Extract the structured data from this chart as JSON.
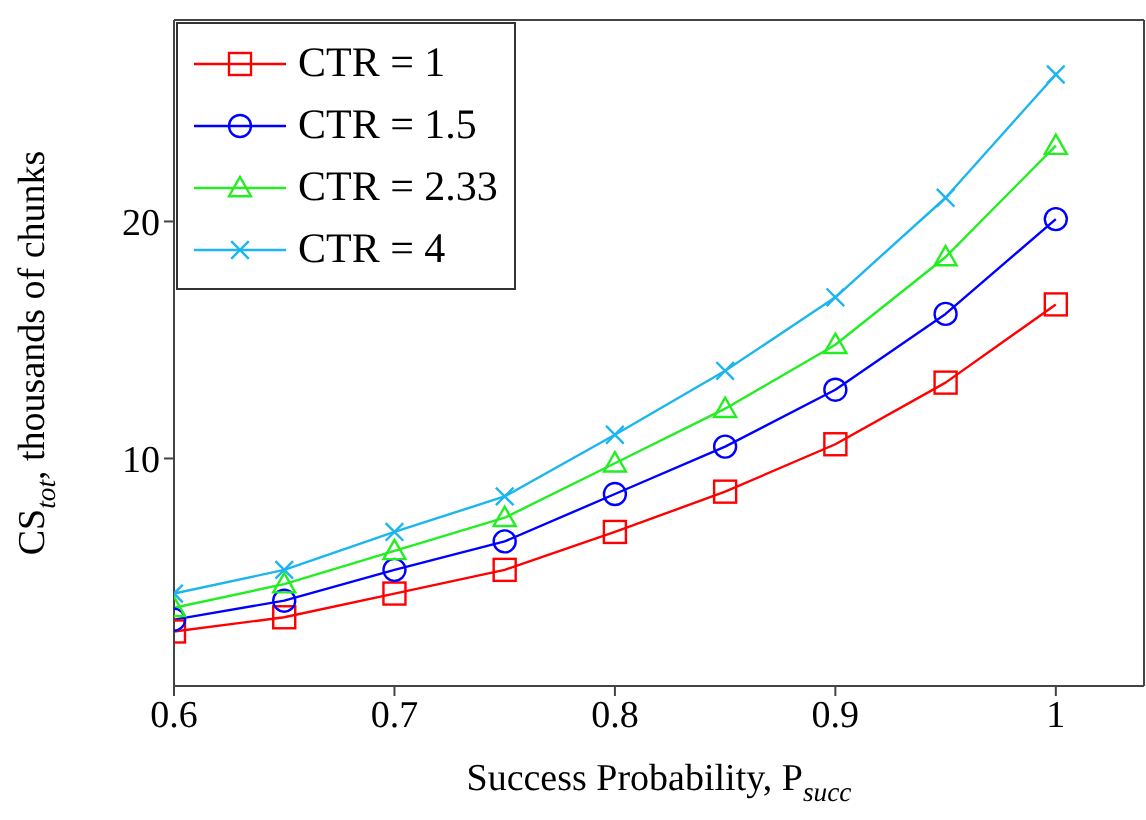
{
  "chart_data": {
    "type": "line",
    "xlabel": "Success Probability, P$_{succ}$",
    "ylabel": "CS$_{tot}$, thousands of chunks",
    "x": [
      0.6,
      0.65,
      0.7,
      0.75,
      0.8,
      0.85,
      0.9,
      0.95,
      1
    ],
    "xlim": [
      0.6,
      1.04
    ],
    "xticks": [
      0.6,
      0.7,
      0.8,
      0.9,
      1
    ],
    "ylim": [
      0.4,
      28.5
    ],
    "yticks": [
      10,
      20
    ],
    "grid": false,
    "legend": "top left",
    "line_style": "solid",
    "series": [
      {
        "name": "CTR = 1",
        "color": "#ff0000",
        "marker": "square",
        "values": [
          2.7,
          3.3,
          4.3,
          5.3,
          6.9,
          8.6,
          10.6,
          13.2,
          16.5
        ]
      },
      {
        "name": "CTR = 1.5",
        "color": "#0000ff",
        "marker": "circle",
        "values": [
          3.2,
          4.0,
          5.3,
          6.5,
          8.5,
          10.5,
          12.9,
          16.1,
          20.1
        ]
      },
      {
        "name": "CTR = 2.33",
        "color": "#22ee22",
        "marker": "triangle",
        "values": [
          3.7,
          4.7,
          6.1,
          7.5,
          9.8,
          12.1,
          14.8,
          18.5,
          23.2
        ]
      },
      {
        "name": "CTR = 4",
        "color": "#1cb5ee",
        "marker": "cross",
        "values": [
          4.3,
          5.3,
          6.9,
          8.4,
          11.0,
          13.7,
          16.8,
          21.0,
          26.2
        ]
      }
    ]
  }
}
